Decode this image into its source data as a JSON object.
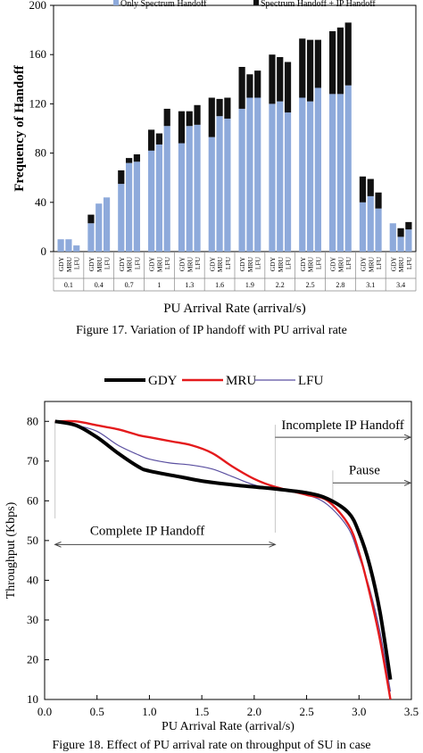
{
  "figure17": {
    "caption": "Figure 17.   Variation of IP handoff with PU arrival rate",
    "chart_data": {
      "type": "bar",
      "ylabel": "Frequency of Handoff",
      "xlabel": "PU Arrival Rate (arrival/s)",
      "ylim": [
        0,
        200
      ],
      "yticks": [
        0,
        40,
        80,
        120,
        160,
        200
      ],
      "groups": [
        "0.1",
        "0.4",
        "0.7",
        "1",
        "1.3",
        "1.6",
        "1.9",
        "2.2",
        "2.5",
        "2.8",
        "3.1",
        "3.4"
      ],
      "subcategories": [
        "GDY",
        "MRU",
        "LFU"
      ],
      "legend_position": "top",
      "series": [
        {
          "name": "Only Spectrum Handoff",
          "color": "#8eaadb",
          "values": [
            [
              10,
              10,
              5
            ],
            [
              23,
              39,
              44
            ],
            [
              55,
              72,
              73
            ],
            [
              82,
              87,
              102
            ],
            [
              88,
              102,
              103
            ],
            [
              93,
              110,
              108
            ],
            [
              116,
              125,
              125
            ],
            [
              120,
              122,
              113
            ],
            [
              125,
              122,
              133
            ],
            [
              128,
              128,
              135
            ],
            [
              40,
              45,
              35
            ],
            [
              23,
              12,
              18
            ]
          ]
        },
        {
          "name": "Spectrum Handoff + IP Handoff",
          "color": "#111111",
          "values": [
            [
              0,
              0,
              0
            ],
            [
              7,
              0,
              0
            ],
            [
              11,
              4,
              6
            ],
            [
              17,
              9,
              14
            ],
            [
              26,
              12,
              16
            ],
            [
              32,
              14,
              17
            ],
            [
              34,
              19,
              22
            ],
            [
              40,
              36,
              41
            ],
            [
              48,
              50,
              39
            ],
            [
              51,
              54,
              51
            ],
            [
              21,
              14,
              13
            ],
            [
              0,
              7,
              6
            ]
          ]
        }
      ]
    }
  },
  "figure18": {
    "caption": "Figure 18.   Effect of PU arrival rate on throughput of SU in case",
    "chart_data": {
      "type": "line",
      "ylabel": "Throughput (Kbps)",
      "xlabel": "PU Arrival Rate (arrival/s)",
      "xlim": [
        0,
        3.5
      ],
      "ylim": [
        10,
        85
      ],
      "xticks": [
        "0.0",
        "0.5",
        "1.0",
        "1.5",
        "2.0",
        "2.5",
        "3.0",
        "3.5"
      ],
      "yticks": [
        10,
        20,
        30,
        40,
        50,
        60,
        70,
        80
      ],
      "legend_position": "top",
      "series": [
        {
          "name": "GDY",
          "color": "#000000",
          "points": [
            [
              0.1,
              80
            ],
            [
              0.3,
              79
            ],
            [
              0.5,
              76
            ],
            [
              0.7,
              72
            ],
            [
              0.9,
              68.5
            ],
            [
              1.0,
              67.5
            ],
            [
              1.3,
              66
            ],
            [
              1.5,
              65
            ],
            [
              1.8,
              64
            ],
            [
              2.0,
              63.5
            ],
            [
              2.2,
              63
            ],
            [
              2.5,
              62
            ],
            [
              2.7,
              60.5
            ],
            [
              2.9,
              57
            ],
            [
              3.0,
              52
            ],
            [
              3.1,
              44
            ],
            [
              3.2,
              32
            ],
            [
              3.3,
              15
            ]
          ]
        },
        {
          "name": "MRU",
          "color": "#e41a1c",
          "points": [
            [
              0.1,
              80
            ],
            [
              0.3,
              80
            ],
            [
              0.5,
              79
            ],
            [
              0.7,
              78
            ],
            [
              0.9,
              76.5
            ],
            [
              1.0,
              76
            ],
            [
              1.2,
              75
            ],
            [
              1.4,
              74
            ],
            [
              1.6,
              72
            ],
            [
              1.8,
              68.5
            ],
            [
              2.0,
              65.5
            ],
            [
              2.2,
              63.5
            ],
            [
              2.5,
              61.5
            ],
            [
              2.7,
              60
            ],
            [
              2.9,
              54
            ],
            [
              3.0,
              47
            ],
            [
              3.1,
              37
            ],
            [
              3.2,
              25
            ],
            [
              3.3,
              10
            ]
          ]
        },
        {
          "name": "LFU",
          "color": "#5a4fa0",
          "points": [
            [
              0.1,
              80
            ],
            [
              0.3,
              79
            ],
            [
              0.5,
              77.5
            ],
            [
              0.7,
              74
            ],
            [
              0.9,
              71.5
            ],
            [
              1.0,
              70.5
            ],
            [
              1.2,
              69.5
            ],
            [
              1.4,
              69
            ],
            [
              1.6,
              68
            ],
            [
              1.8,
              66
            ],
            [
              2.0,
              64
            ],
            [
              2.2,
              63
            ],
            [
              2.5,
              61.5
            ],
            [
              2.7,
              59
            ],
            [
              2.9,
              53
            ],
            [
              3.0,
              46
            ],
            [
              3.1,
              38
            ],
            [
              3.2,
              27
            ],
            [
              3.3,
              12
            ]
          ]
        }
      ],
      "annotations": [
        {
          "text": "Complete IP Handoff",
          "from": 0.1,
          "to": 2.2,
          "level": 49
        },
        {
          "text": "Incomplete IP Handoff",
          "from": 2.2,
          "to": 3.5,
          "level": 76
        },
        {
          "text": "Pause",
          "from": 2.75,
          "to": 3.5,
          "level": 64.5
        }
      ]
    }
  }
}
